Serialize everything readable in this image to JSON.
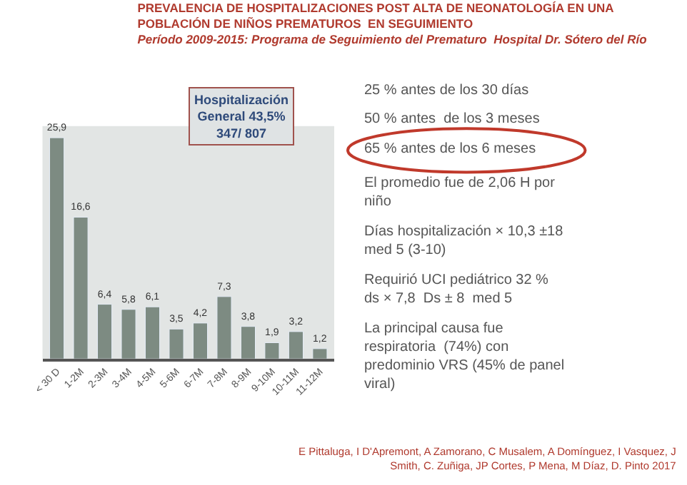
{
  "chart_data": {
    "type": "bar",
    "title": "PREVALENCIA DE HOSPITALIZACIONES POST ALTA DE NEONATOLOGÍA EN UNA\nPOBLACIÓN DE NIÑOS PREMATUROS  EN SEGUIMIENTO",
    "subtitle": "Período 2009-2015: Programa de Seguimiento del Prematuro  Hospital Dr. Sótero del Río",
    "categories": [
      "< 30 D",
      "1-2M",
      "2-3M",
      "3-4M",
      "4-5M",
      "5-6M",
      "6-7M",
      "7-8M",
      "8-9M",
      "9-10M",
      "10-11M",
      "11-12M"
    ],
    "values": [
      25.9,
      16.6,
      6.4,
      5.8,
      6.1,
      3.5,
      4.2,
      7.3,
      3.8,
      1.9,
      3.2,
      1.2
    ],
    "value_labels": [
      "25,9",
      "16,6",
      "6,4",
      "5,8",
      "6,1",
      "3,5",
      "4,2",
      "7,3",
      "3,8",
      "1,9",
      "3,2",
      "1,2"
    ],
    "color": "#7d8b82",
    "legend": false,
    "annotations": [
      "Hospitalización\nGeneral 43,5%\n347/ 807",
      "25 % antes de los 30 días",
      "50 % antes  de los 3 meses",
      "65 % antes de los 6 meses",
      "El promedio fue de 2,06 H por\nniño",
      "Días hospitalización × 10,3 ±18\nmed 5 (3-10)",
      "Requirió UCI pediátrico 32 %\nds × 7,8  Ds ± 8  med 5",
      "La principal causa fue\nrespiratoria  (74%) con\npredominio VRS (45% de panel\nviral)",
      "E Pittaluga, I D'Apremont, A Zamorano, C Musalem, A Domínguez, I Vasquez, J\nSmith, C. Zuñiga, JP Cortes, P Mena, M Díaz, D. Pinto 2017"
    ]
  }
}
